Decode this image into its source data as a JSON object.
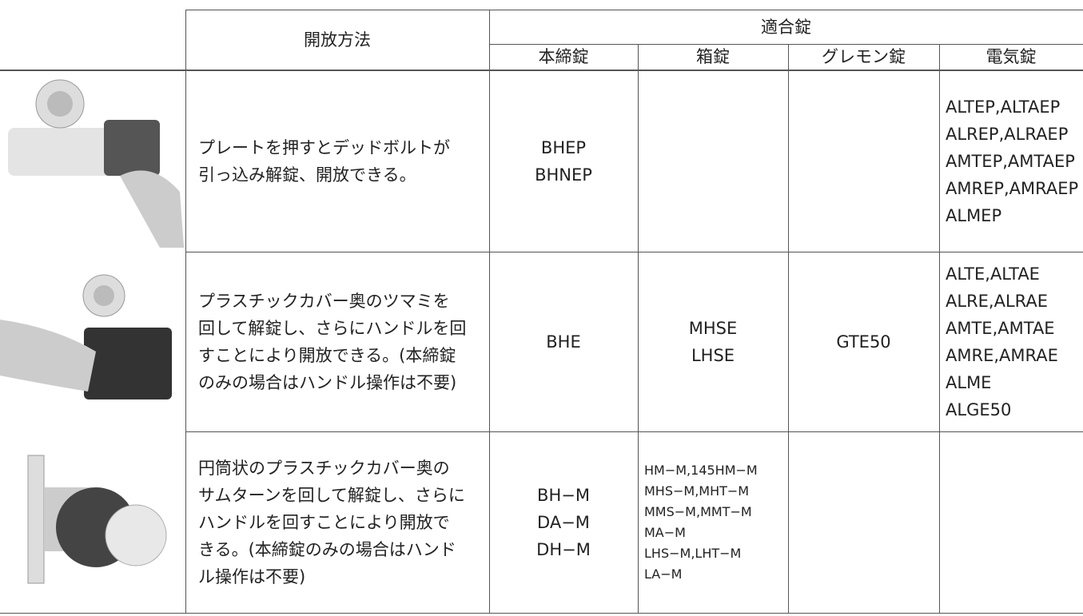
{
  "table": {
    "header": {
      "method": "開放方法",
      "group": "適合錠",
      "columns": [
        "本締錠",
        "箱錠",
        "グレモン錠",
        "電気錠"
      ]
    },
    "rows": [
      {
        "description": [
          "プレートを押すとデッドボルトが",
          "引っ込み解錠、開放できる。"
        ],
        "cells": [
          [
            "BHEP",
            "BHNEP"
          ],
          [],
          [],
          [
            "ALTEP,ALTAEP",
            "ALREP,ALRAEP",
            "AMTEP,AMTAEP",
            "AMREP,AMRAEP",
            "ALMEP"
          ]
        ]
      },
      {
        "description": [
          "プラスチックカバー奥のツマミを",
          "回して解錠し、さらにハンドルを回",
          "すことにより開放できる。(本締錠",
          "のみの場合はハンドル操作は不要)"
        ],
        "cells": [
          [
            "BHE"
          ],
          [
            "MHSE",
            "LHSE"
          ],
          [
            "GTE50"
          ],
          [
            "ALTE,ALTAE",
            "ALRE,ALRAE",
            "AMTE,AMTAE",
            "AMRE,AMRAE",
            "ALME",
            "ALGE50"
          ]
        ]
      },
      {
        "description": [
          "円筒状のプラスチックカバー奥の",
          "サムターンを回して解錠し、さらに",
          "ハンドルを回すことにより開放で",
          "きる。(本締錠のみの場合はハンド",
          "ル操作は不要)"
        ],
        "cells": [
          [
            "BH−M",
            "DA−M",
            "DH−M"
          ],
          [
            "HM−M,145HM−M",
            "MHS−M,MHT−M",
            "MMS−M,MMT−M",
            "MA−M",
            "LHS−M,LHT−M",
            "LA−M"
          ],
          [],
          []
        ]
      }
    ]
  }
}
